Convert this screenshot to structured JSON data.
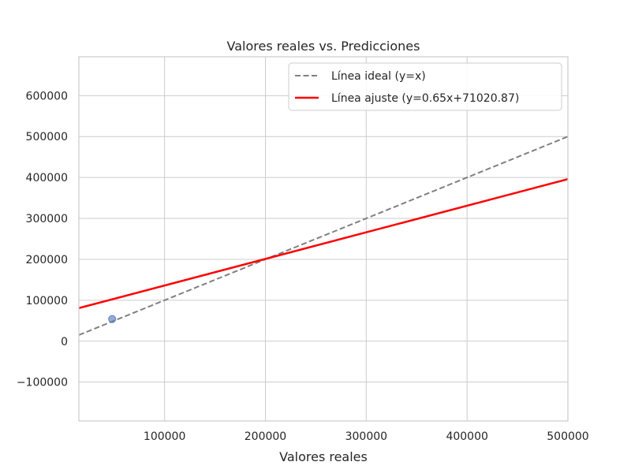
{
  "chart_data": {
    "type": "scatter",
    "title": "Valores reales vs. Predicciones",
    "xlabel": "Valores reales",
    "ylabel": "",
    "xlim": [
      15000,
      500000
    ],
    "ylim": [
      -195000,
      695000
    ],
    "x_ticks": [
      100000,
      200000,
      300000,
      400000,
      500000
    ],
    "x_tick_labels": [
      "100000",
      "200000",
      "300000",
      "400000",
      "500000"
    ],
    "y_ticks": [
      -100000,
      0,
      100000,
      200000,
      300000,
      400000,
      500000,
      600000
    ],
    "y_tick_labels": [
      "−100000",
      "0",
      "100000",
      "200000",
      "300000",
      "400000",
      "500000",
      "600000"
    ],
    "grid": true,
    "legend_position": "top-right",
    "points": [
      {
        "x": 48000,
        "y": 54000
      }
    ],
    "point_color": "#5b7fbe",
    "series": [
      {
        "name": "Línea ideal (y=x)",
        "kind": "line",
        "style": "dashed",
        "color": "#808080",
        "slope": 1,
        "intercept": 0
      },
      {
        "name": "Línea ajuste (y=0.65x+71020.87)",
        "kind": "line",
        "style": "solid",
        "color": "#ff0000",
        "slope": 0.65,
        "intercept": 71020.87
      }
    ]
  }
}
